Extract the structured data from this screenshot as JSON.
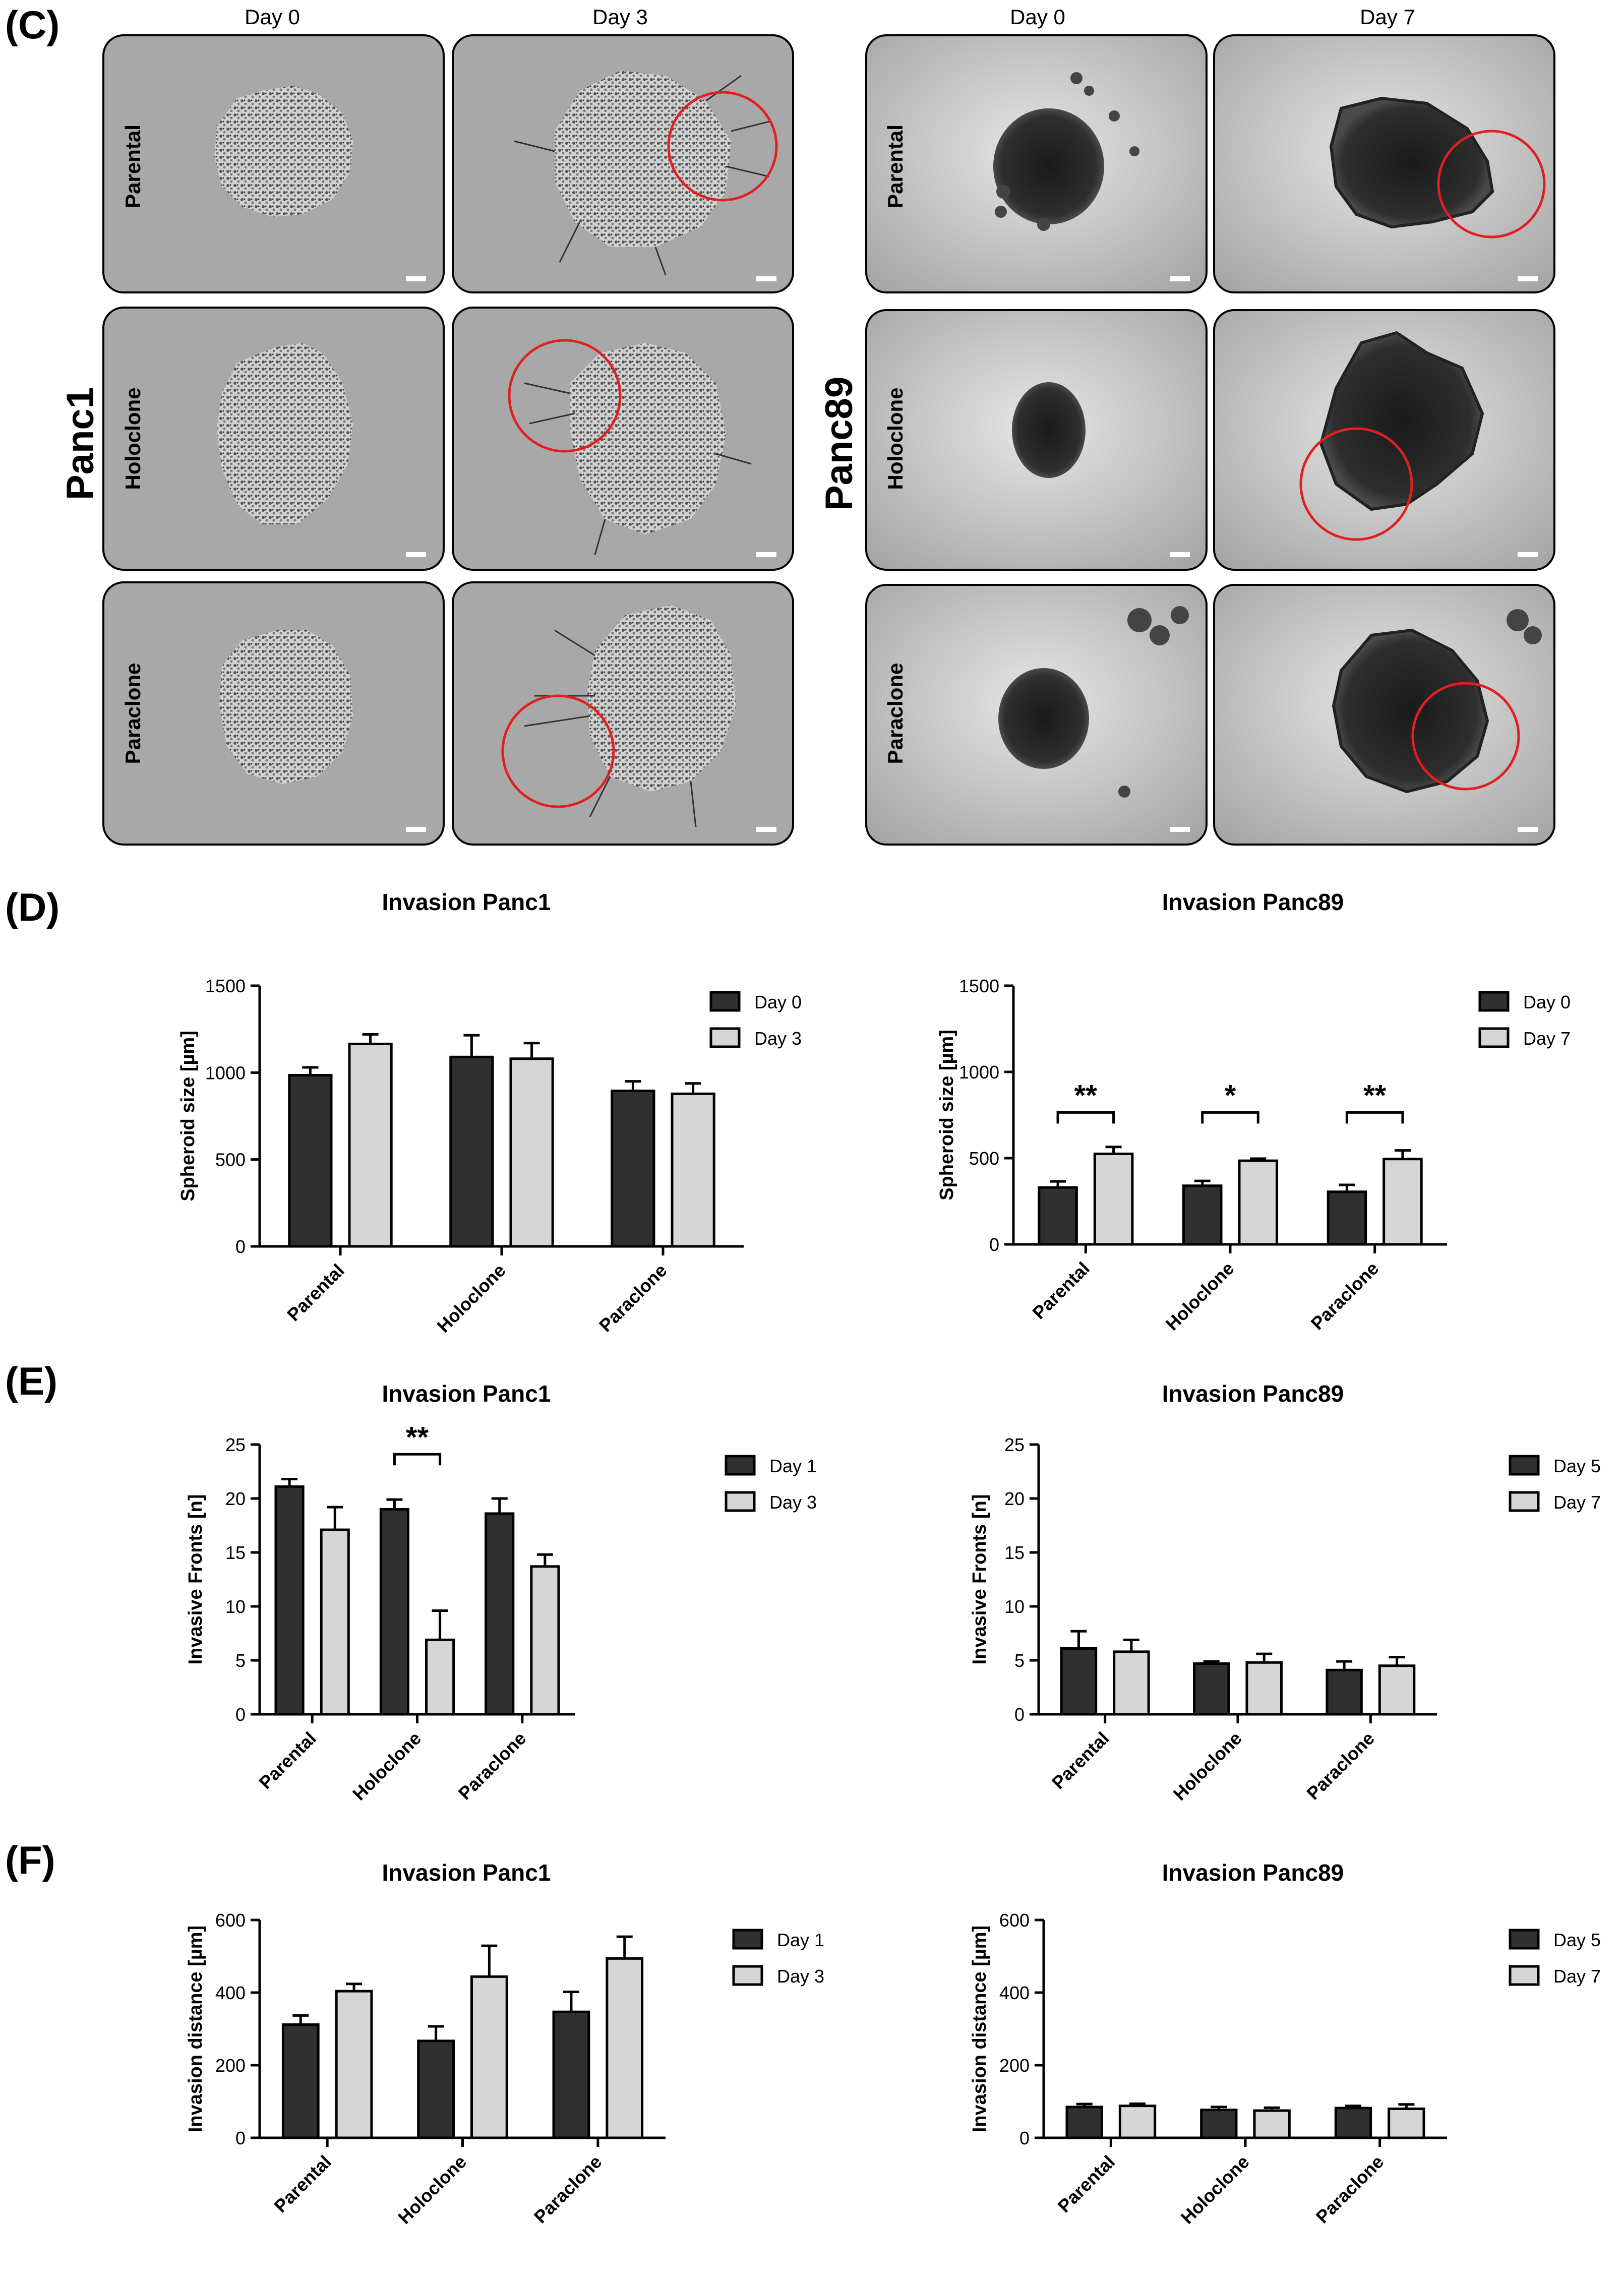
{
  "panels": {
    "C": "(C)",
    "D": "(D)",
    "E": "(E)",
    "F": "(F)"
  },
  "images": {
    "column_headers": [
      "Day 0",
      "Day 3",
      "Day 0",
      "Day 7"
    ],
    "groups": [
      {
        "cell_line": "Panc1",
        "rows": [
          "Parental",
          "Holoclone",
          "Paraclone"
        ]
      },
      {
        "cell_line": "Panc89",
        "rows": [
          "Parental",
          "Holoclone",
          "Paraclone"
        ]
      }
    ]
  },
  "chart_data": [
    {
      "id": "d-panc1",
      "type": "bar",
      "title": "Invasion Panc1",
      "ylabel": "Spheroid size [µm]",
      "ylim": [
        0,
        1500
      ],
      "yticks": [
        0,
        500,
        1000,
        1500
      ],
      "categories": [
        "Parental",
        "Holoclone",
        "Paraclone"
      ],
      "series": [
        {
          "name": "Day 0",
          "color": "#303030",
          "values": [
            985,
            1090,
            895
          ],
          "errors": [
            45,
            125,
            55
          ]
        },
        {
          "name": "Day 3",
          "color": "#d6d6d6",
          "values": [
            1165,
            1080,
            878
          ],
          "errors": [
            55,
            90,
            60
          ]
        }
      ],
      "significance": []
    },
    {
      "id": "d-panc89",
      "type": "bar",
      "title": "Invasion Panc89",
      "ylabel": "Spheroid size [µm]",
      "ylim": [
        0,
        1500
      ],
      "yticks": [
        0,
        500,
        1000,
        1500
      ],
      "categories": [
        "Parental",
        "Holoclone",
        "Paraclone"
      ],
      "series": [
        {
          "name": "Day 0",
          "color": "#303030",
          "values": [
            330,
            340,
            305
          ],
          "errors": [
            35,
            28,
            40
          ]
        },
        {
          "name": "Day 7",
          "color": "#d6d6d6",
          "values": [
            525,
            485,
            495
          ],
          "errors": [
            40,
            12,
            50
          ]
        }
      ],
      "significance": [
        {
          "category": 0,
          "label": "**",
          "y": 765
        },
        {
          "category": 1,
          "label": "*",
          "y": 765
        },
        {
          "category": 2,
          "label": "**",
          "y": 765
        }
      ]
    },
    {
      "id": "e-panc1",
      "type": "bar",
      "title": "Invasion Panc1",
      "ylabel": "Invasive Fronts [n]",
      "ylim": [
        0,
        25
      ],
      "yticks": [
        0,
        5,
        10,
        15,
        20,
        25
      ],
      "categories": [
        "Parental",
        "Holoclone",
        "Paraclone"
      ],
      "series": [
        {
          "name": "Day 1",
          "color": "#303030",
          "values": [
            21.1,
            19.0,
            18.6
          ],
          "errors": [
            0.7,
            0.9,
            1.4
          ]
        },
        {
          "name": "Day 3",
          "color": "#d6d6d6",
          "values": [
            17.1,
            6.9,
            13.7
          ],
          "errors": [
            2.1,
            2.7,
            1.1
          ]
        }
      ],
      "significance": [
        {
          "category": 1,
          "label": "**",
          "y": 24.1
        }
      ]
    },
    {
      "id": "e-panc89",
      "type": "bar",
      "title": "Invasion Panc89",
      "ylabel": "Invasive Fronts [n]",
      "ylim": [
        0,
        25
      ],
      "yticks": [
        0,
        5,
        10,
        15,
        20,
        25
      ],
      "categories": [
        "Parental",
        "Holoclone",
        "Paraclone"
      ],
      "series": [
        {
          "name": "Day 5",
          "color": "#303030",
          "values": [
            6.1,
            4.7,
            4.1
          ],
          "errors": [
            1.6,
            0.2,
            0.8
          ]
        },
        {
          "name": "Day 7",
          "color": "#d6d6d6",
          "values": [
            5.8,
            4.8,
            4.5
          ],
          "errors": [
            1.1,
            0.8,
            0.8
          ]
        }
      ],
      "significance": []
    },
    {
      "id": "f-panc1",
      "type": "bar",
      "title": "Invasion Panc1",
      "ylabel": "Invasion distance [µm]",
      "ylim": [
        0,
        600
      ],
      "yticks": [
        0,
        200,
        400,
        600
      ],
      "categories": [
        "Parental",
        "Holoclone",
        "Paraclone"
      ],
      "series": [
        {
          "name": "Day 1",
          "color": "#303030",
          "values": [
            312,
            267,
            347
          ],
          "errors": [
            25,
            40,
            55
          ]
        },
        {
          "name": "Day 3",
          "color": "#d6d6d6",
          "values": [
            404,
            444,
            494
          ],
          "errors": [
            20,
            85,
            60
          ]
        }
      ],
      "significance": []
    },
    {
      "id": "f-panc89",
      "type": "bar",
      "title": "Invasion Panc89",
      "ylabel": "Invasion distance [µm]",
      "ylim": [
        0,
        600
      ],
      "yticks": [
        0,
        200,
        400,
        600
      ],
      "categories": [
        "Parental",
        "Holoclone",
        "Paraclone"
      ],
      "series": [
        {
          "name": "Day 5",
          "color": "#303030",
          "values": [
            85,
            77,
            82
          ],
          "errors": [
            8,
            8,
            6
          ]
        },
        {
          "name": "Day 7",
          "color": "#d6d6d6",
          "values": [
            88,
            75,
            80
          ],
          "errors": [
            6,
            8,
            12
          ]
        }
      ],
      "significance": []
    }
  ]
}
